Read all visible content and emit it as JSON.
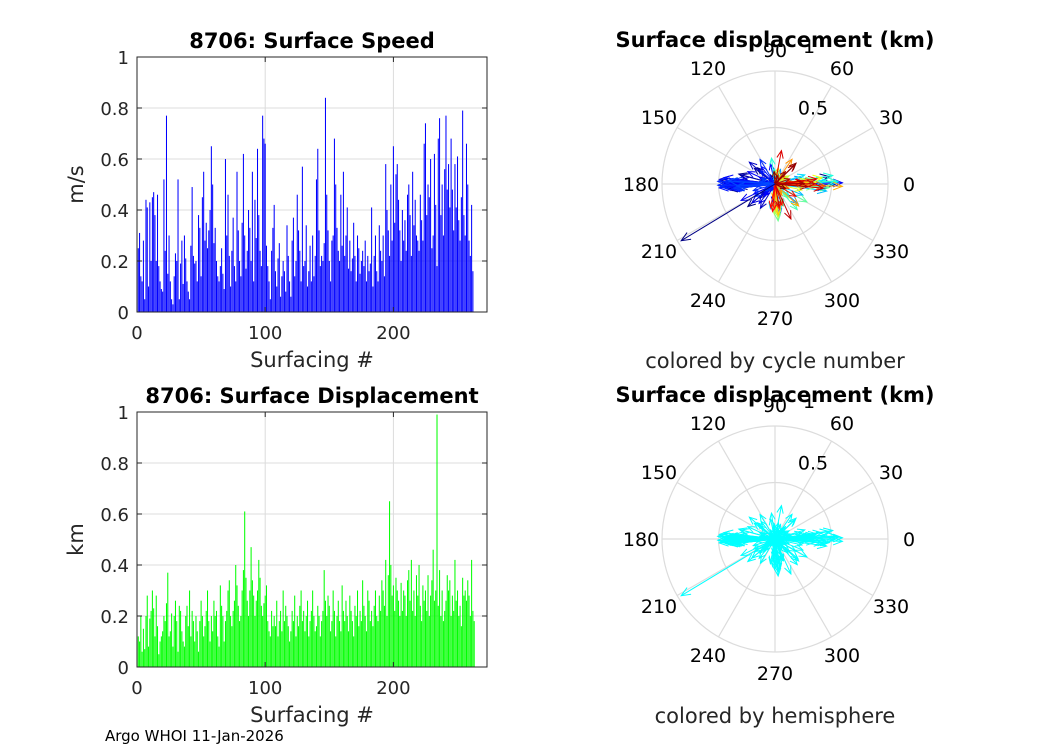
{
  "footer": "Argo WHOI 11-Jan-2026",
  "colors": {
    "speed": "#0000ff",
    "displacement": "#00ff00",
    "hemisphere": "#00ffff",
    "grid": "#dcdcdc",
    "axis": "#262626"
  },
  "chart_data": [
    {
      "id": "speed",
      "type": "bar",
      "title": "8706: Surface Speed",
      "xlabel": "Surfacing #",
      "ylabel": "m/s",
      "xlim": [
        0,
        273
      ],
      "ylim": [
        0,
        1
      ],
      "xticks": [
        0,
        100,
        200
      ],
      "yticks": [
        0,
        0.2,
        0.4,
        0.6,
        0.8,
        1
      ],
      "ytick_labels": [
        "0",
        "0.2",
        "0.4",
        "0.6",
        "0.8",
        "1"
      ],
      "grid": true,
      "color": "#0000ff",
      "values": [
        0.25,
        0.31,
        0.14,
        0.12,
        0.28,
        0.05,
        0.44,
        0.41,
        0.1,
        0.43,
        0.2,
        0.45,
        0.47,
        0.38,
        0.2,
        0.46,
        0.18,
        0.12,
        0.09,
        0.08,
        0.52,
        0.24,
        0.77,
        0.15,
        0.3,
        0.12,
        0.05,
        0.03,
        0.14,
        0.23,
        0.2,
        0.52,
        0.05,
        0.19,
        0.28,
        0.11,
        0.3,
        0.21,
        0.12,
        0.08,
        0.05,
        0.26,
        0.49,
        0.22,
        0.19,
        0.2,
        0.12,
        0.38,
        0.33,
        0.14,
        0.45,
        0.55,
        0.28,
        0.35,
        0.25,
        0.32,
        0.4,
        0.65,
        0.5,
        0.27,
        0.33,
        0.2,
        0.14,
        0.12,
        0.18,
        0.25,
        0.15,
        0.09,
        0.6,
        0.3,
        0.46,
        0.22,
        0.1,
        0.24,
        0.37,
        0.18,
        0.12,
        0.55,
        0.32,
        0.2,
        0.14,
        0.35,
        0.62,
        0.3,
        0.17,
        0.24,
        0.4,
        0.33,
        0.2,
        0.55,
        0.12,
        0.44,
        0.29,
        0.64,
        0.38,
        0.24,
        0.18,
        0.77,
        0.68,
        0.66,
        0.26,
        0.18,
        0.12,
        0.05,
        0.24,
        0.33,
        0.42,
        0.16,
        0.1,
        0.21,
        0.27,
        0.06,
        0.14,
        0.2,
        0.16,
        0.08,
        0.34,
        0.22,
        0.12,
        0.06,
        0.28,
        0.37,
        0.14,
        0.2,
        0.46,
        0.32,
        0.24,
        0.12,
        0.57,
        0.18,
        0.2,
        0.34,
        0.1,
        0.16,
        0.26,
        0.12,
        0.3,
        0.14,
        0.22,
        0.52,
        0.64,
        0.32,
        0.18,
        0.22,
        0.2,
        0.27,
        0.84,
        0.46,
        0.32,
        0.2,
        0.12,
        0.28,
        0.3,
        0.68,
        0.5,
        0.33,
        0.24,
        0.2,
        0.46,
        0.26,
        0.55,
        0.22,
        0.3,
        0.41,
        0.17,
        0.28,
        0.16,
        0.21,
        0.35,
        0.22,
        0.12,
        0.3,
        0.25,
        0.15,
        0.2,
        0.24,
        0.18,
        0.28,
        0.12,
        0.22,
        0.16,
        0.19,
        0.41,
        0.1,
        0.22,
        0.3,
        0.16,
        0.12,
        0.34,
        0.24,
        0.2,
        0.3,
        0.14,
        0.58,
        0.4,
        0.32,
        0.22,
        0.5,
        0.28,
        0.65,
        0.35,
        0.54,
        0.58,
        0.44,
        0.32,
        0.2,
        0.4,
        0.28,
        0.36,
        0.24,
        0.46,
        0.5,
        0.38,
        0.22,
        0.55,
        0.34,
        0.44,
        0.3,
        0.28,
        0.24,
        0.46,
        0.36,
        0.28,
        0.66,
        0.74,
        0.38,
        0.5,
        0.45,
        0.6,
        0.25,
        0.3,
        0.62,
        0.42,
        0.18,
        0.68,
        0.76,
        0.38,
        0.5,
        0.3,
        0.56,
        0.77,
        0.48,
        0.58,
        0.41,
        0.68,
        0.48,
        0.32,
        0.58,
        0.41,
        0.61,
        0.36,
        0.28,
        0.45,
        0.79,
        0.38,
        0.3,
        0.66,
        0.5,
        0.28,
        0.22,
        0.42,
        0.16
      ]
    },
    {
      "id": "displacement",
      "type": "bar",
      "title": "8706: Surface Displacement",
      "xlabel": "Surfacing #",
      "ylabel": "km",
      "xlim": [
        0,
        273
      ],
      "ylim": [
        0,
        1
      ],
      "xticks": [
        0,
        100,
        200
      ],
      "yticks": [
        0,
        0.2,
        0.4,
        0.6,
        0.8,
        1
      ],
      "ytick_labels": [
        "0",
        "0.2",
        "0.4",
        "0.6",
        "0.8",
        "1"
      ],
      "grid": true,
      "color": "#00ff00",
      "values": [
        0.12,
        0.1,
        0.2,
        0.06,
        0.15,
        0.07,
        0.2,
        0.28,
        0.08,
        0.19,
        0.22,
        0.3,
        0.23,
        0.12,
        0.28,
        0.16,
        0.05,
        0.1,
        0.12,
        0.14,
        0.2,
        0.18,
        0.25,
        0.37,
        0.12,
        0.14,
        0.21,
        0.08,
        0.2,
        0.26,
        0.18,
        0.06,
        0.24,
        0.22,
        0.14,
        0.1,
        0.08,
        0.2,
        0.24,
        0.16,
        0.3,
        0.12,
        0.22,
        0.18,
        0.1,
        0.2,
        0.14,
        0.06,
        0.18,
        0.26,
        0.2,
        0.12,
        0.16,
        0.22,
        0.3,
        0.18,
        0.1,
        0.2,
        0.14,
        0.26,
        0.2,
        0.22,
        0.12,
        0.08,
        0.32,
        0.24,
        0.2,
        0.1,
        0.18,
        0.22,
        0.3,
        0.34,
        0.2,
        0.16,
        0.22,
        0.26,
        0.4,
        0.32,
        0.24,
        0.18,
        0.2,
        0.3,
        0.38,
        0.61,
        0.35,
        0.26,
        0.2,
        0.3,
        0.47,
        0.34,
        0.28,
        0.2,
        0.26,
        0.3,
        0.42,
        0.35,
        0.24,
        0.2,
        0.25,
        0.28,
        0.32,
        0.18,
        0.14,
        0.12,
        0.22,
        0.16,
        0.2,
        0.16,
        0.26,
        0.12,
        0.18,
        0.22,
        0.14,
        0.3,
        0.18,
        0.24,
        0.2,
        0.16,
        0.1,
        0.14,
        0.22,
        0.18,
        0.28,
        0.12,
        0.2,
        0.16,
        0.24,
        0.3,
        0.18,
        0.22,
        0.14,
        0.2,
        0.26,
        0.12,
        0.18,
        0.22,
        0.3,
        0.2,
        0.14,
        0.16,
        0.24,
        0.2,
        0.12,
        0.18,
        0.22,
        0.38,
        0.26,
        0.2,
        0.28,
        0.24,
        0.14,
        0.18,
        0.3,
        0.22,
        0.12,
        0.2,
        0.26,
        0.18,
        0.14,
        0.32,
        0.22,
        0.18,
        0.26,
        0.2,
        0.14,
        0.28,
        0.22,
        0.18,
        0.12,
        0.24,
        0.2,
        0.3,
        0.16,
        0.22,
        0.18,
        0.34,
        0.24,
        0.2,
        0.14,
        0.3,
        0.26,
        0.18,
        0.22,
        0.16,
        0.24,
        0.3,
        0.2,
        0.18,
        0.28,
        0.22,
        0.34,
        0.3,
        0.24,
        0.42,
        0.2,
        0.36,
        0.65,
        0.4,
        0.28,
        0.32,
        0.22,
        0.35,
        0.3,
        0.26,
        0.2,
        0.33,
        0.22,
        0.3,
        0.28,
        0.2,
        0.34,
        0.38,
        0.26,
        0.42,
        0.22,
        0.3,
        0.2,
        0.36,
        0.28,
        0.4,
        0.24,
        0.18,
        0.32,
        0.26,
        0.3,
        0.22,
        0.36,
        0.2,
        0.28,
        0.34,
        0.46,
        0.26,
        0.3,
        0.99,
        0.24,
        0.38,
        0.2,
        0.3,
        0.18,
        0.22,
        0.26,
        0.36,
        0.3,
        0.34,
        0.2,
        0.28,
        0.22,
        0.42,
        0.26,
        0.3,
        0.2,
        0.24,
        0.16,
        0.35,
        0.28,
        0.3,
        0.26,
        0.34,
        0.28,
        0.2,
        0.42,
        0.22,
        0.18
      ]
    },
    {
      "id": "polar-cycle",
      "type": "polar-quiver",
      "title": "Surface displacement (km)",
      "caption": "colored by cycle number",
      "rmax": 1,
      "rtick_labels": [
        "0.5",
        "1"
      ],
      "angle_labels": [
        "0",
        "30",
        "60",
        "90",
        "120",
        "150",
        "180",
        "210",
        "240",
        "270",
        "300",
        "330"
      ],
      "colormap": "jet",
      "seed": 8706
    },
    {
      "id": "polar-hemisphere",
      "type": "polar-quiver",
      "title": "Surface displacement (km)",
      "caption": "colored by hemisphere",
      "rmax": 1,
      "rtick_labels": [
        "0.5",
        "1"
      ],
      "angle_labels": [
        "0",
        "30",
        "60",
        "90",
        "120",
        "150",
        "180",
        "210",
        "240",
        "270",
        "300",
        "330"
      ],
      "colormap": "single",
      "color": "#00ffff",
      "seed": 8706
    }
  ]
}
